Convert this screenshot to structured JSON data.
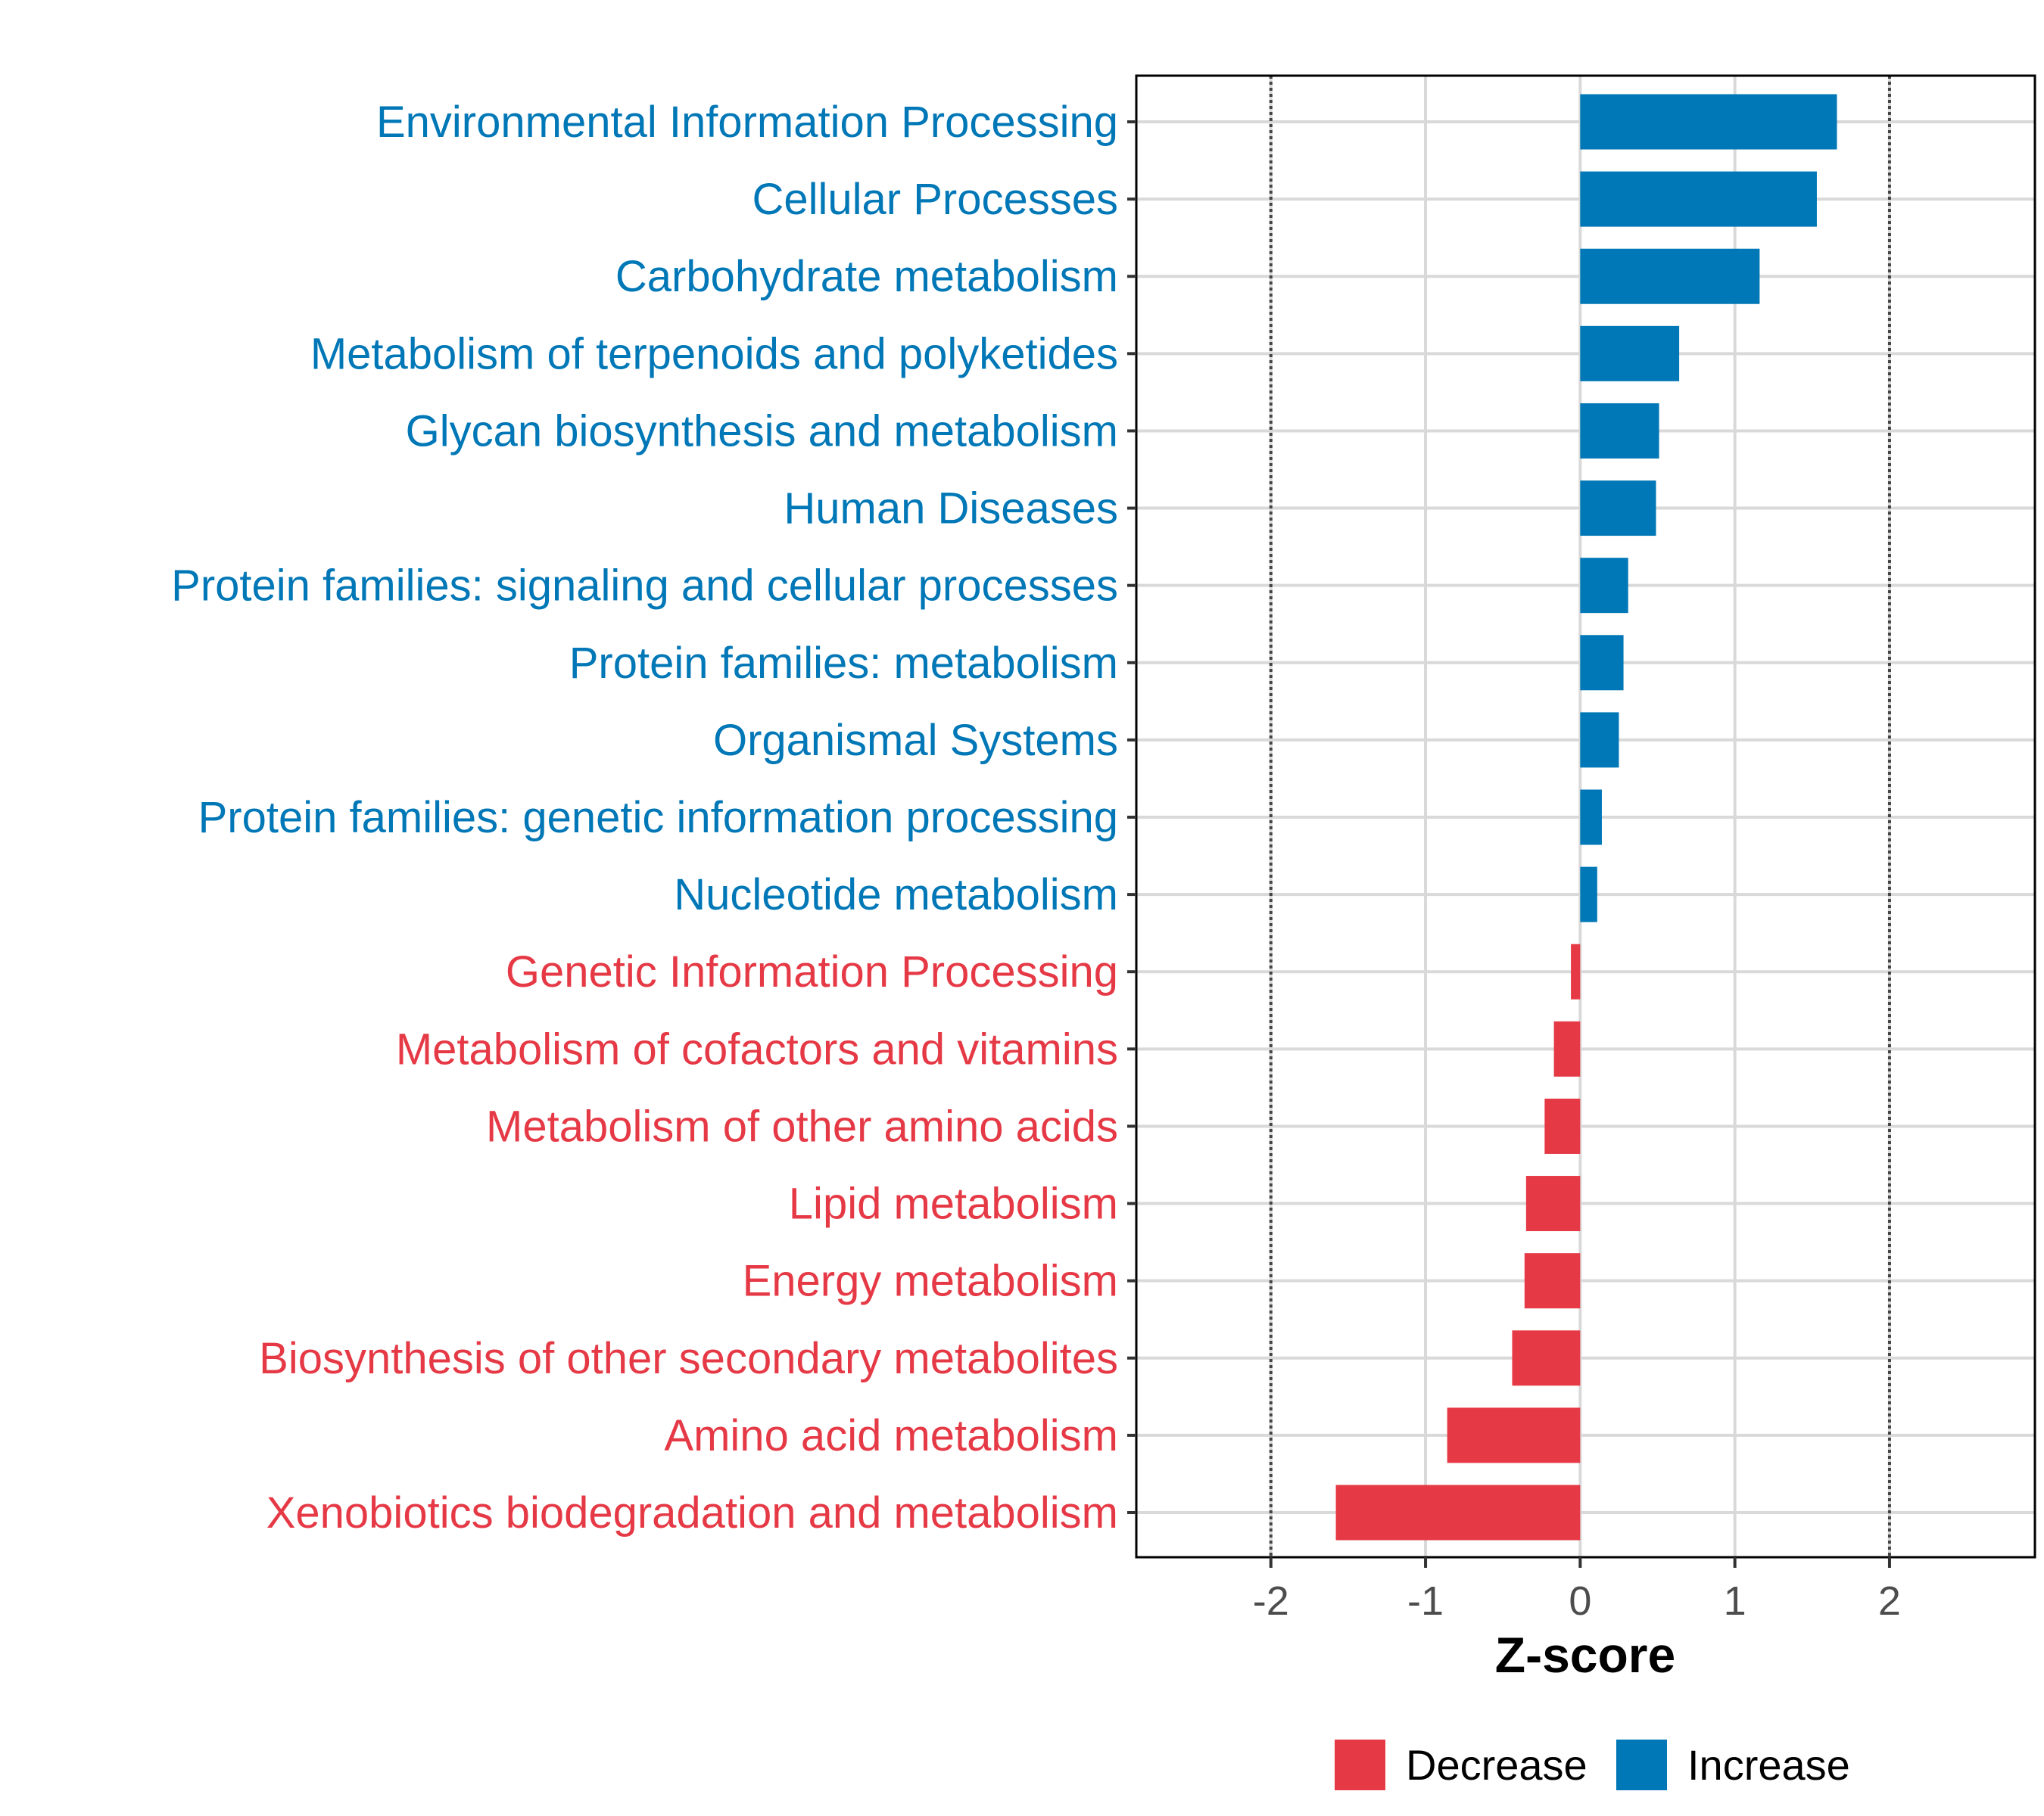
{
  "chart_data": {
    "type": "bar",
    "orientation": "horizontal",
    "xlabel": "Z-score",
    "ylabel": "",
    "xlim": [
      -2.87,
      2.94
    ],
    "xticks": [
      -2,
      -1,
      0,
      1,
      2
    ],
    "xtick_labels": [
      "-2",
      "-1",
      "0",
      "1",
      "2"
    ],
    "reference_lines": [
      -2,
      2
    ],
    "grid": true,
    "legend_position": "bottom",
    "legend": [
      {
        "name": "Decrease",
        "color": "#E63946"
      },
      {
        "name": "Increase",
        "color": "#0077B6"
      }
    ],
    "categories": [
      "Environmental Information Processing",
      "Cellular Processes",
      "Carbohydrate metabolism",
      "Metabolism of terpenoids and polyketides",
      "Glycan biosynthesis and metabolism",
      "Human Diseases",
      "Protein families: signaling and cellular processes",
      "Protein families: metabolism",
      "Organismal Systems",
      "Protein families: genetic information processing",
      "Nucleotide metabolism",
      "Genetic Information Processing",
      "Metabolism of cofactors and vitamins",
      "Metabolism of other amino acids",
      "Lipid metabolism",
      "Energy metabolism",
      "Biosynthesis of other secondary metabolites",
      "Amino acid metabolism",
      "Xenobiotics biodegradation and metabolism"
    ],
    "values": [
      1.66,
      1.53,
      1.16,
      0.64,
      0.51,
      0.49,
      0.31,
      0.28,
      0.25,
      0.14,
      0.11,
      -0.06,
      -0.17,
      -0.23,
      -0.35,
      -0.36,
      -0.44,
      -0.86,
      -1.58
    ]
  }
}
